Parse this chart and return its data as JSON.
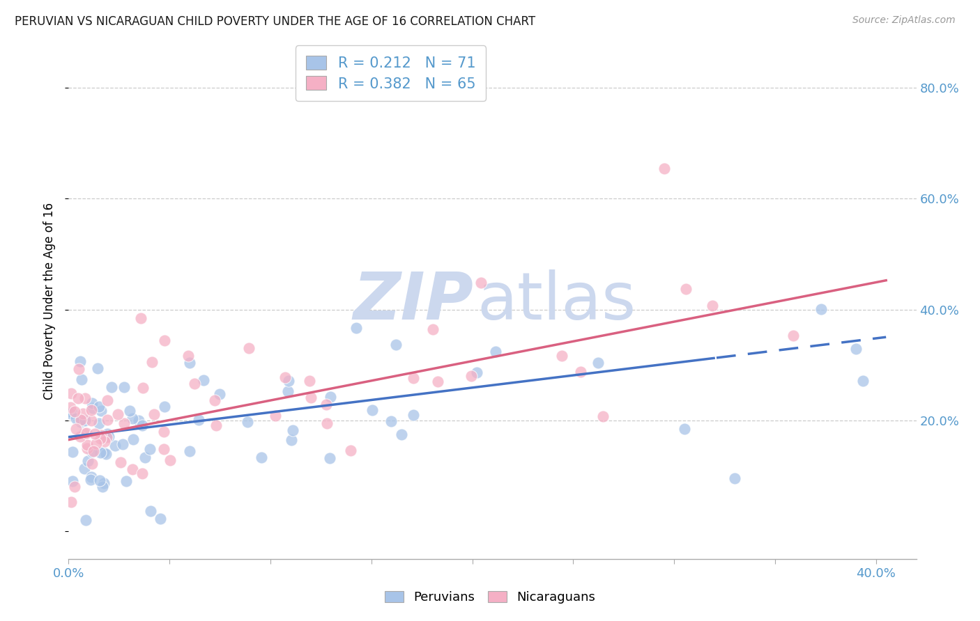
{
  "title": "PERUVIAN VS NICARAGUAN CHILD POVERTY UNDER THE AGE OF 16 CORRELATION CHART",
  "source": "Source: ZipAtlas.com",
  "ylabel": "Child Poverty Under the Age of 16",
  "xlim": [
    0.0,
    0.42
  ],
  "ylim": [
    -0.05,
    0.88
  ],
  "xticks": [
    0.0,
    0.05,
    0.1,
    0.15,
    0.2,
    0.25,
    0.3,
    0.35,
    0.4
  ],
  "xtick_labels": [
    "0.0%",
    "",
    "",
    "",
    "",
    "",
    "",
    "",
    "40.0%"
  ],
  "yticks_right": [
    0.2,
    0.4,
    0.6,
    0.8
  ],
  "ytick_right_labels": [
    "20.0%",
    "40.0%",
    "60.0%",
    "80.0%"
  ],
  "R_peru": 0.212,
  "N_peru": 71,
  "R_nica": 0.382,
  "N_nica": 65,
  "blue_scatter": "#a8c4e8",
  "pink_scatter": "#f5b0c5",
  "blue_line": "#4472c4",
  "pink_line": "#d96080",
  "watermark_zip_color": "#ccd8ee",
  "watermark_atlas_color": "#ccd8ee",
  "grid_color": "#cccccc",
  "axis_color": "#5599cc",
  "title_color": "#1a1a1a",
  "source_color": "#999999",
  "trend_peru_intercept": 0.17,
  "trend_peru_slope": 0.445,
  "trend_nica_intercept": 0.165,
  "trend_nica_slope": 0.71,
  "trend_split_x": 0.32
}
